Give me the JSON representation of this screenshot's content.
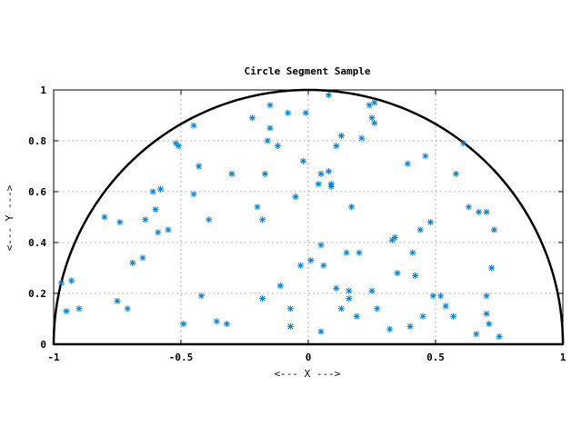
{
  "chart_data": {
    "type": "scatter",
    "title": "Circle Segment Sample",
    "xlabel": "<--- X --->",
    "ylabel": "<--- Y --->",
    "xlim": [
      -1,
      1
    ],
    "ylim": [
      0,
      1
    ],
    "x_ticks": [
      -1,
      -0.5,
      0,
      0.5,
      1
    ],
    "x_tick_labels": [
      "-1",
      "-0.5",
      "0",
      "0.5",
      "1"
    ],
    "y_ticks": [
      0,
      0.2,
      0.4,
      0.6,
      0.8,
      1
    ],
    "y_tick_labels": [
      "0",
      "0.2",
      "0.4",
      "0.6",
      "0.8",
      "1"
    ],
    "grid": true,
    "boundary": "semicircle of radius 1 centered at origin",
    "marker": "asterisk",
    "point_color": "#0080d0",
    "boundary_color": "#000000",
    "points": [
      [
        -0.97,
        0.24
      ],
      [
        -0.95,
        0.13
      ],
      [
        -0.93,
        0.25
      ],
      [
        -0.9,
        0.14
      ],
      [
        -0.8,
        0.5
      ],
      [
        -0.75,
        0.17
      ],
      [
        -0.74,
        0.48
      ],
      [
        -0.71,
        0.14
      ],
      [
        -0.69,
        0.32
      ],
      [
        -0.65,
        0.34
      ],
      [
        -0.64,
        0.49
      ],
      [
        -0.61,
        0.6
      ],
      [
        -0.6,
        0.53
      ],
      [
        -0.59,
        0.44
      ],
      [
        -0.58,
        0.61
      ],
      [
        -0.55,
        0.45
      ],
      [
        -0.52,
        0.79
      ],
      [
        -0.51,
        0.78
      ],
      [
        -0.49,
        0.08
      ],
      [
        -0.45,
        0.86
      ],
      [
        -0.45,
        0.59
      ],
      [
        -0.43,
        0.7
      ],
      [
        -0.42,
        0.19
      ],
      [
        -0.39,
        0.49
      ],
      [
        -0.36,
        0.09
      ],
      [
        -0.32,
        0.08
      ],
      [
        -0.3,
        0.67
      ],
      [
        -0.22,
        0.89
      ],
      [
        -0.2,
        0.54
      ],
      [
        -0.18,
        0.49
      ],
      [
        -0.18,
        0.18
      ],
      [
        -0.17,
        0.67
      ],
      [
        -0.16,
        0.8
      ],
      [
        -0.15,
        0.94
      ],
      [
        -0.15,
        0.85
      ],
      [
        -0.12,
        0.78
      ],
      [
        -0.11,
        0.23
      ],
      [
        -0.08,
        0.91
      ],
      [
        -0.07,
        0.14
      ],
      [
        -0.07,
        0.07
      ],
      [
        -0.05,
        0.58
      ],
      [
        -0.03,
        0.31
      ],
      [
        -0.02,
        0.72
      ],
      [
        -0.01,
        0.91
      ],
      [
        0.01,
        0.33
      ],
      [
        0.04,
        0.63
      ],
      [
        0.05,
        0.39
      ],
      [
        0.05,
        0.67
      ],
      [
        0.05,
        0.05
      ],
      [
        0.06,
        0.31
      ],
      [
        0.08,
        0.98
      ],
      [
        0.08,
        0.68
      ],
      [
        0.09,
        0.62
      ],
      [
        0.09,
        0.63
      ],
      [
        0.11,
        0.22
      ],
      [
        0.11,
        0.78
      ],
      [
        0.13,
        0.82
      ],
      [
        0.13,
        0.14
      ],
      [
        0.15,
        0.36
      ],
      [
        0.16,
        0.21
      ],
      [
        0.16,
        0.18
      ],
      [
        0.17,
        0.54
      ],
      [
        0.19,
        0.11
      ],
      [
        0.2,
        0.36
      ],
      [
        0.21,
        0.81
      ],
      [
        0.24,
        0.94
      ],
      [
        0.25,
        0.89
      ],
      [
        0.25,
        0.21
      ],
      [
        0.26,
        0.87
      ],
      [
        0.26,
        0.95
      ],
      [
        0.27,
        0.14
      ],
      [
        0.32,
        0.06
      ],
      [
        0.33,
        0.41
      ],
      [
        0.34,
        0.42
      ],
      [
        0.35,
        0.28
      ],
      [
        0.39,
        0.71
      ],
      [
        0.4,
        0.07
      ],
      [
        0.41,
        0.36
      ],
      [
        0.42,
        0.27
      ],
      [
        0.44,
        0.45
      ],
      [
        0.45,
        0.11
      ],
      [
        0.46,
        0.74
      ],
      [
        0.48,
        0.48
      ],
      [
        0.49,
        0.19
      ],
      [
        0.52,
        0.19
      ],
      [
        0.54,
        0.15
      ],
      [
        0.57,
        0.11
      ],
      [
        0.58,
        0.67
      ],
      [
        0.61,
        0.79
      ],
      [
        0.63,
        0.54
      ],
      [
        0.66,
        0.04
      ],
      [
        0.67,
        0.52
      ],
      [
        0.7,
        0.52
      ],
      [
        0.7,
        0.19
      ],
      [
        0.7,
        0.12
      ],
      [
        0.71,
        0.08
      ],
      [
        0.72,
        0.3
      ],
      [
        0.73,
        0.45
      ],
      [
        0.75,
        0.03
      ]
    ]
  }
}
